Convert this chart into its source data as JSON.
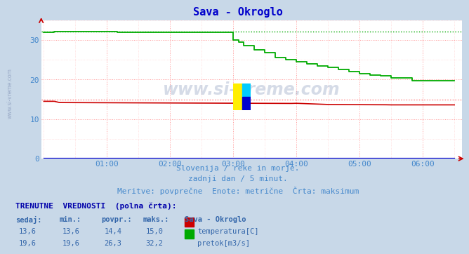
{
  "title": "Sava - Okroglo",
  "title_color": "#0000cc",
  "bg_color": "#c8d8e8",
  "plot_bg_color": "#ffffff",
  "grid_color": "#ff9999",
  "xlabel_color": "#4488cc",
  "watermark": "www.si-vreme.com",
  "subtitle_lines": [
    "Slovenija / reke in morje.",
    "zadnji dan / 5 minut.",
    "Meritve: povprečne  Enote: metrične  Črta: maksimum"
  ],
  "footer_header": "TRENUTNE  VREDNOSTI  (polna črta):",
  "footer_cols": [
    "sedaj:",
    "min.:",
    "povpr.:",
    "maks.:",
    "Sava - Okroglo"
  ],
  "footer_rows": [
    [
      "13,6",
      "13,6",
      "14,4",
      "15,0",
      "temperatura[C]",
      "#cc0000"
    ],
    [
      "19,6",
      "19,6",
      "26,3",
      "32,2",
      "pretok[m3/s]",
      "#00aa00"
    ]
  ],
  "ymin": 0,
  "ymax": 35,
  "yticks": [
    0,
    10,
    20,
    30
  ],
  "xtick_labels": [
    "01:00",
    "02:00",
    "03:00",
    "04:00",
    "05:00",
    "06:00"
  ],
  "temp_color": "#cc0000",
  "temp_max_color": "#ff8888",
  "flow_color": "#00aa00",
  "flow_max_color": "#88ff88",
  "height_color": "#0000cc",
  "temp_max": 15.0,
  "flow_max": 32.2
}
